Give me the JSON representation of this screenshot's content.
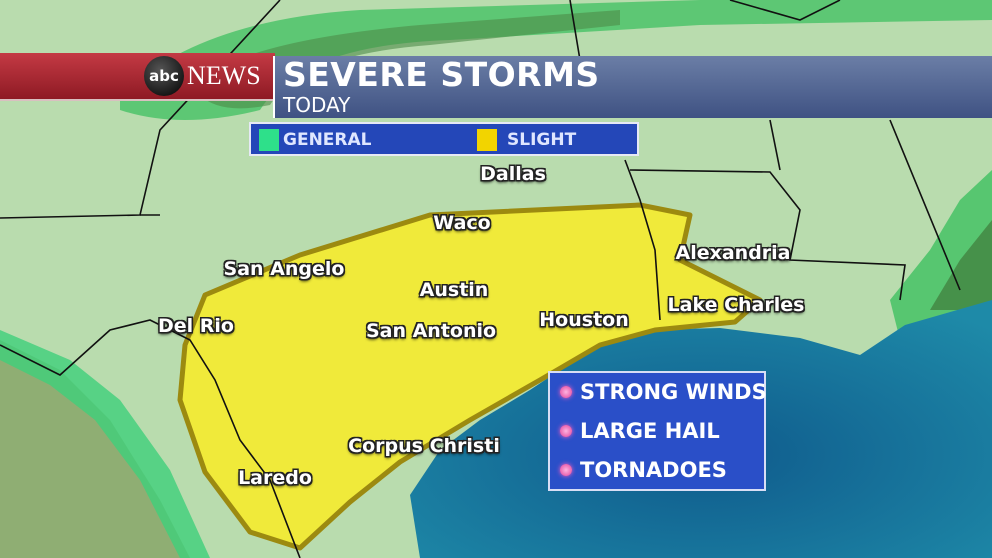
{
  "header": {
    "network": "abc NEWS",
    "logo_mark": "abc",
    "logo_word": "NEWS",
    "title": "SEVERE STORMS",
    "subtitle": "TODAY"
  },
  "legend": [
    {
      "label": "GENERAL",
      "color": "#2ee08a"
    },
    {
      "label": "SLIGHT",
      "color": "#f2d400"
    }
  ],
  "cities": [
    "Dallas",
    "Waco",
    "San Angelo",
    "Austin",
    "Del Rio",
    "San Antonio",
    "Houston",
    "Alexandria",
    "Lake Charles",
    "Corpus Christi",
    "Laredo"
  ],
  "threats": [
    "STRONG WINDS",
    "LARGE HAIL",
    "TORNADOES"
  ],
  "colors": {
    "general_risk": "#2ee08a",
    "slight_risk": "#f0ea3a",
    "land": "#b9dcae",
    "water": "#1a6c9c",
    "banner_red": "#b02a36",
    "banner_blue": "#4d5f90"
  }
}
